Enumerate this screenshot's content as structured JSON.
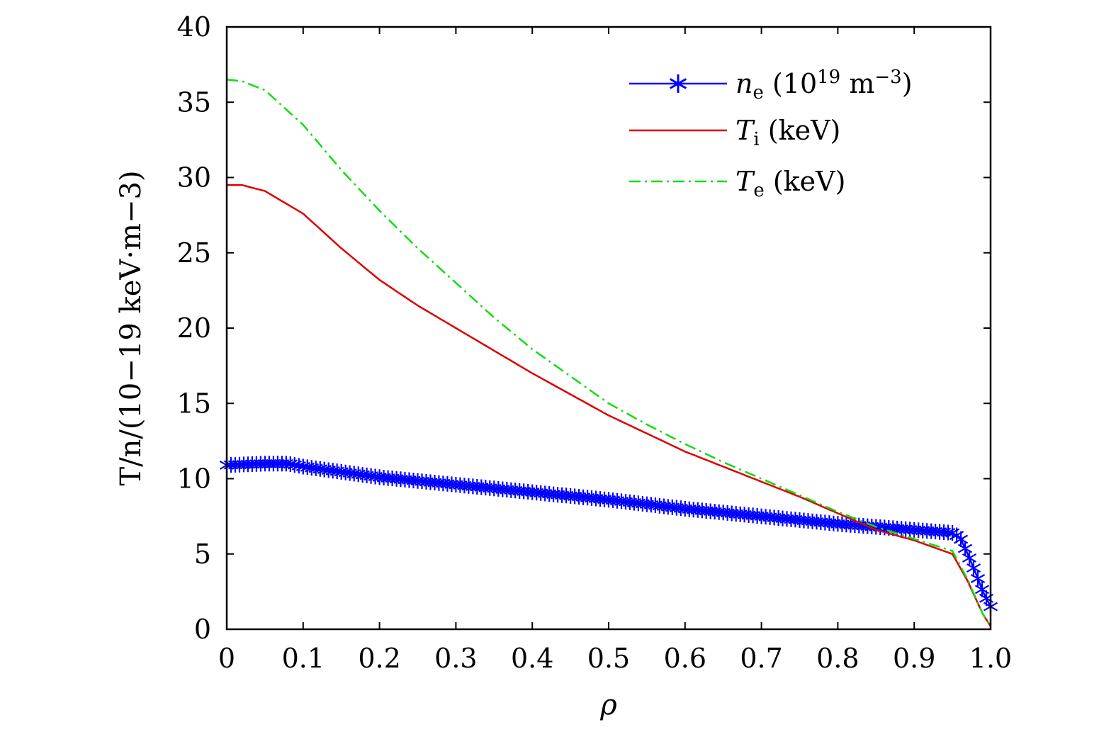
{
  "chart_data": {
    "type": "line",
    "xlabel": "ρ",
    "ylabel": "T/n/(10−19 keV·m−3)",
    "xlim": [
      0,
      1.0
    ],
    "ylim": [
      0,
      40
    ],
    "xticks": [
      "0",
      "0.1",
      "0.2",
      "0.3",
      "0.4",
      "0.5",
      "0.6",
      "0.7",
      "0.8",
      "0.9",
      "1.0"
    ],
    "yticks": [
      "0",
      "5",
      "10",
      "15",
      "20",
      "25",
      "30",
      "35",
      "40"
    ],
    "legend_position": "top-right",
    "grid": false,
    "legend": [
      {
        "symbol": "n",
        "sub": "e",
        "rest": " (10",
        "sup": "19",
        "tail": " m",
        "sup2": "−3",
        "end": ")"
      },
      {
        "symbol": "T",
        "sub": "i",
        "rest": " (keV)"
      },
      {
        "symbol": "T",
        "sub": "e",
        "rest": " (keV)"
      }
    ],
    "series": [
      {
        "name": "ne (10^19 m^-3)",
        "color": "#0000ff",
        "style": "solid-star-markers",
        "x": [
          0,
          0.05,
          0.08,
          0.1,
          0.2,
          0.3,
          0.4,
          0.5,
          0.6,
          0.7,
          0.8,
          0.9,
          0.95,
          0.96,
          0.97,
          0.98,
          0.99,
          1.0
        ],
        "y": [
          10.9,
          11.0,
          11.0,
          10.8,
          10.1,
          9.6,
          9.1,
          8.6,
          8.0,
          7.5,
          7.0,
          6.6,
          6.4,
          6.1,
          5.0,
          3.8,
          2.5,
          1.5
        ]
      },
      {
        "name": "Ti (keV)",
        "color": "#dd0000",
        "style": "solid",
        "x": [
          0,
          0.02,
          0.05,
          0.1,
          0.15,
          0.2,
          0.25,
          0.3,
          0.35,
          0.4,
          0.45,
          0.5,
          0.55,
          0.6,
          0.65,
          0.7,
          0.75,
          0.8,
          0.85,
          0.9,
          0.95,
          0.97,
          0.99,
          1.0
        ],
        "y": [
          29.5,
          29.5,
          29.1,
          27.6,
          25.3,
          23.2,
          21.5,
          20.0,
          18.5,
          17.0,
          15.6,
          14.2,
          13.0,
          11.8,
          10.8,
          9.8,
          8.8,
          7.7,
          6.6,
          5.9,
          5.0,
          3.2,
          1.0,
          0.2
        ]
      },
      {
        "name": "Te (keV)",
        "color": "#11dd11",
        "style": "dashed",
        "x": [
          0,
          0.02,
          0.05,
          0.1,
          0.15,
          0.2,
          0.25,
          0.3,
          0.35,
          0.4,
          0.45,
          0.5,
          0.55,
          0.6,
          0.65,
          0.7,
          0.75,
          0.8,
          0.85,
          0.9,
          0.95,
          0.97,
          0.99,
          1.0
        ],
        "y": [
          36.5,
          36.4,
          35.8,
          33.5,
          30.5,
          27.8,
          25.3,
          23.0,
          20.7,
          18.6,
          16.8,
          15.0,
          13.6,
          12.3,
          11.1,
          10.0,
          8.9,
          7.8,
          6.8,
          6.0,
          5.2,
          3.3,
          1.0,
          0.2
        ]
      }
    ]
  }
}
